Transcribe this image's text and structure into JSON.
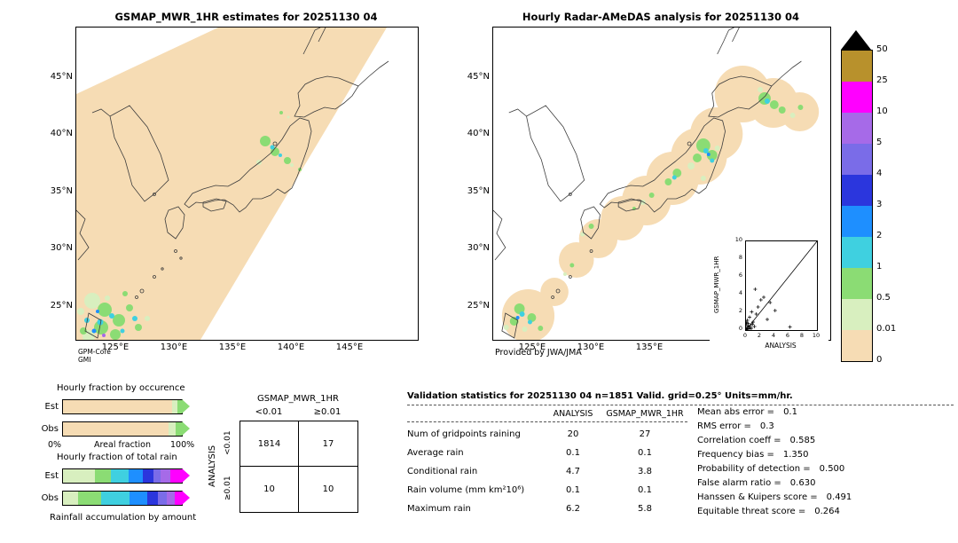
{
  "chart_data": [
    {
      "type": "heatmap",
      "title": "GSMAP_MWR_1HR estimates for 20251130 04",
      "units": "mm/hr",
      "scale_levels": [
        0,
        0.01,
        0.5,
        1,
        2,
        3,
        4,
        5,
        10,
        25,
        50
      ],
      "note": "satellite swath precipitation map over Japan, GPM-Core GMI"
    },
    {
      "type": "heatmap",
      "title": "Hourly Radar-AMeDAS analysis for 20251130 04",
      "units": "mm/hr",
      "scale_levels": [
        0,
        0.01,
        0.5,
        1,
        2,
        3,
        4,
        5,
        10,
        25,
        50
      ],
      "note": "radar analysis precipitation map over Japan, Provided by JWA/JMA"
    },
    {
      "type": "table",
      "title": "Contingency table",
      "row_axis": "ANALYSIS",
      "col_axis": "GSMAP_MWR_1HR",
      "columns": [
        "<0.01",
        "≥0.01"
      ],
      "rows": [
        {
          "label": "<0.01",
          "values": [
            1814,
            17
          ]
        },
        {
          "label": "≥0.01",
          "values": [
            10,
            10
          ]
        }
      ]
    },
    {
      "type": "table",
      "title": "Validation statistics for 20251130 04 n=1851 Valid. grid=0.25° Units=mm/hr.",
      "columns": [
        "ANALYSIS",
        "GSMAP_MWR_1HR"
      ],
      "rows": [
        [
          "Num of gridpoints raining",
          20,
          27
        ],
        [
          "Average rain",
          0.1,
          0.1
        ],
        [
          "Conditional rain",
          4.7,
          3.8
        ],
        [
          "Rain volume (mm km²10⁶)",
          0.1,
          0.1
        ],
        [
          "Maximum rain",
          6.2,
          5.8
        ]
      ],
      "metrics": {
        "Mean abs error": 0.1,
        "RMS error": 0.3,
        "Correlation coeff": 0.585,
        "Frequency bias": 1.35,
        "Probability of detection": 0.5,
        "False alarm ratio": 0.63,
        "Hanssen & Kuipers score": 0.491,
        "Equitable threat score": 0.264
      }
    },
    {
      "type": "scatter",
      "title": "inset validation scatter",
      "xlabel": "ANALYSIS",
      "ylabel": "GSMAP_MWR_1HR",
      "xlim": [
        0,
        10
      ],
      "ylim": [
        0,
        10
      ]
    }
  ],
  "palette": {
    "t": "#f6dcb4",
    "pg": "#d8efbf",
    "g": "#8bdc74",
    "c": "#3fd0e0",
    "b": "#1e8fff",
    "rb": "#2b36dd",
    "sb": "#7a6ce8",
    "v": "#a66ae8",
    "m": "#ff00ff",
    "gold": "#b8912c"
  },
  "colorbar": {
    "labels": [
      "50",
      "25",
      "10",
      "5",
      "4",
      "3",
      "2",
      "1",
      "0.5",
      "0.01",
      "0"
    ],
    "colors": [
      "#b8912c",
      "#ff00ff",
      "#a66ae8",
      "#7a6ce8",
      "#2b36dd",
      "#1e8fff",
      "#3fd0e0",
      "#8bdc74",
      "#d8efbf",
      "#f6dcb4"
    ]
  },
  "maps": {
    "left": {
      "title": "GSMAP_MWR_1HR estimates for 20251130 04",
      "lat_ticks": [
        "45°N",
        "40°N",
        "35°N",
        "30°N",
        "25°N"
      ],
      "lon_ticks": [
        "125°E",
        "130°E",
        "135°E",
        "140°E",
        "145°E"
      ],
      "source_line1": "GPM-Core",
      "source_line2": "GMI",
      "blobs": [
        [
          213,
          128,
          6,
          "g"
        ],
        [
          224,
          140,
          5,
          "g"
        ],
        [
          238,
          150,
          4,
          "g"
        ],
        [
          206,
          152,
          3,
          "pg"
        ],
        [
          221,
          135,
          2.5,
          "c"
        ],
        [
          230,
          144,
          2,
          "c"
        ],
        [
          243,
          155,
          2,
          "pg"
        ],
        [
          252,
          160,
          2,
          "g"
        ],
        [
          231,
          96,
          2,
          "g"
        ],
        [
          239,
          101,
          1.5,
          "pg"
        ],
        [
          18,
          308,
          9,
          "pg"
        ],
        [
          32,
          318,
          8,
          "g"
        ],
        [
          48,
          330,
          7,
          "g"
        ],
        [
          28,
          338,
          8,
          "g"
        ],
        [
          14,
          348,
          7,
          "pg"
        ],
        [
          44,
          346,
          6,
          "g"
        ],
        [
          60,
          316,
          4,
          "g"
        ],
        [
          70,
          338,
          4,
          "g"
        ],
        [
          80,
          328,
          3,
          "pg"
        ],
        [
          27,
          332,
          3.5,
          "c"
        ],
        [
          40,
          325,
          3,
          "c"
        ],
        [
          20,
          342,
          2.5,
          "b"
        ],
        [
          31,
          347,
          2,
          "v"
        ],
        [
          52,
          342,
          2.5,
          "c"
        ],
        [
          12,
          330,
          3,
          "c"
        ],
        [
          35,
          305,
          3,
          "pg"
        ],
        [
          55,
          300,
          3,
          "g"
        ],
        [
          8,
          342,
          4,
          "g"
        ],
        [
          5,
          320,
          4,
          "pg"
        ],
        [
          66,
          328,
          3,
          "c"
        ],
        [
          24,
          320,
          2,
          "b"
        ]
      ]
    },
    "right": {
      "title": "Hourly Radar-AMeDAS analysis for 20251130 04",
      "lat_ticks": [
        "45°N",
        "40°N",
        "35°N",
        "30°N",
        "25°N"
      ],
      "lon_ticks": [
        "125°E",
        "130°E",
        "135°E"
      ],
      "credit": "Provided by JWA/JMA",
      "coverage_blobs": [
        [
          285,
          75,
          32
        ],
        [
          320,
          85,
          28
        ],
        [
          350,
          95,
          22
        ],
        [
          255,
          120,
          30
        ],
        [
          235,
          145,
          32
        ],
        [
          205,
          170,
          30
        ],
        [
          175,
          195,
          28
        ],
        [
          148,
          215,
          25
        ],
        [
          120,
          238,
          22
        ],
        [
          95,
          262,
          20
        ],
        [
          40,
          325,
          30
        ],
        [
          70,
          298,
          16
        ]
      ],
      "blobs": [
        [
          240,
          133,
          8,
          "g"
        ],
        [
          250,
          144,
          6,
          "g"
        ],
        [
          233,
          147,
          5,
          "g"
        ],
        [
          243,
          139,
          3,
          "c"
        ],
        [
          250,
          150,
          2.5,
          "c"
        ],
        [
          246,
          143,
          2,
          "b"
        ],
        [
          256,
          136,
          3,
          "pg"
        ],
        [
          226,
          156,
          4,
          "pg"
        ],
        [
          210,
          164,
          5,
          "g"
        ],
        [
          200,
          174,
          4,
          "g"
        ],
        [
          207,
          169,
          2.5,
          "c"
        ],
        [
          181,
          189,
          3,
          "g"
        ],
        [
          171,
          197,
          3,
          "pg"
        ],
        [
          161,
          204,
          2,
          "g"
        ],
        [
          240,
          170,
          3,
          "pg"
        ],
        [
          310,
          80,
          7,
          "g"
        ],
        [
          321,
          87,
          5,
          "g"
        ],
        [
          313,
          83,
          3,
          "c"
        ],
        [
          330,
          93,
          4,
          "g"
        ],
        [
          342,
          99,
          3,
          "pg"
        ],
        [
          351,
          90,
          3,
          "g"
        ],
        [
          305,
          70,
          3,
          "pg"
        ],
        [
          112,
          224,
          3,
          "g"
        ],
        [
          102,
          233,
          2.5,
          "pg"
        ],
        [
          90,
          268,
          2.5,
          "g"
        ],
        [
          82,
          278,
          2,
          "pg"
        ],
        [
          30,
          317,
          6,
          "g"
        ],
        [
          44,
          327,
          5,
          "g"
        ],
        [
          24,
          331,
          5,
          "g"
        ],
        [
          33,
          323,
          3,
          "c"
        ],
        [
          42,
          332,
          2.5,
          "c"
        ],
        [
          28,
          327,
          2,
          "b"
        ],
        [
          54,
          339,
          3,
          "g"
        ],
        [
          15,
          338,
          3,
          "pg"
        ],
        [
          36,
          340,
          3,
          "pg"
        ]
      ]
    }
  },
  "inset": {
    "ylabel": "GSMAP_MWR_1HR",
    "xlabel": "ANALYSIS",
    "ticks": [
      "0",
      "2",
      "4",
      "6",
      "8",
      "10"
    ],
    "points": [
      [
        0.05,
        0.1
      ],
      [
        0.1,
        0.05
      ],
      [
        0.15,
        0.3
      ],
      [
        0.25,
        0.15
      ],
      [
        0.3,
        0.45
      ],
      [
        0.1,
        0.6
      ],
      [
        0.45,
        0.3
      ],
      [
        0.5,
        0.15
      ],
      [
        0.3,
        0.75
      ],
      [
        0.6,
        0.5
      ],
      [
        0.75,
        0.2
      ],
      [
        0.9,
        0.65
      ],
      [
        0.2,
        1.1
      ],
      [
        1.0,
        0.9
      ],
      [
        0.5,
        1.45
      ],
      [
        1.2,
        0.4
      ],
      [
        1.45,
        1.8
      ],
      [
        0.8,
        2.05
      ],
      [
        1.7,
        2.6
      ],
      [
        2.1,
        3.4
      ],
      [
        2.5,
        3.7
      ],
      [
        3.0,
        1.2
      ],
      [
        3.4,
        3.1
      ],
      [
        4.1,
        2.2
      ],
      [
        0.05,
        0.85
      ],
      [
        1.3,
        4.6
      ],
      [
        6.2,
        0.35
      ]
    ]
  },
  "fractions": {
    "occurrence_title": "Hourly fraction by occurence",
    "total_title": "Hourly fraction of total rain",
    "areal_left": "0%",
    "areal_label": "Areal fraction",
    "areal_right": "100%",
    "caption": "Rainfall accumulation by amount",
    "occ_rows": [
      {
        "label": "Est",
        "tip": "g",
        "segments": [
          {
            "c": "t",
            "pct": 92
          },
          {
            "c": "pg",
            "pct": 4
          },
          {
            "c": "g",
            "pct": 4
          }
        ]
      },
      {
        "label": "Obs",
        "tip": "g",
        "segments": [
          {
            "c": "t",
            "pct": 89
          },
          {
            "c": "pg",
            "pct": 6
          },
          {
            "c": "g",
            "pct": 5
          }
        ]
      }
    ],
    "total_rows": [
      {
        "label": "Est",
        "tip": "m",
        "segments": [
          {
            "c": "pg",
            "pct": 27
          },
          {
            "c": "g",
            "pct": 13
          },
          {
            "c": "c",
            "pct": 15
          },
          {
            "c": "b",
            "pct": 12
          },
          {
            "c": "rb",
            "pct": 9
          },
          {
            "c": "sb",
            "pct": 6
          },
          {
            "c": "v",
            "pct": 8
          },
          {
            "c": "m",
            "pct": 10
          }
        ]
      },
      {
        "label": "Obs",
        "tip": "m",
        "segments": [
          {
            "c": "pg",
            "pct": 13
          },
          {
            "c": "g",
            "pct": 19
          },
          {
            "c": "c",
            "pct": 24
          },
          {
            "c": "b",
            "pct": 15
          },
          {
            "c": "rb",
            "pct": 9
          },
          {
            "c": "sb",
            "pct": 7
          },
          {
            "c": "v",
            "pct": 7
          },
          {
            "c": "m",
            "pct": 6
          }
        ]
      }
    ]
  },
  "contingency": {
    "title": "GSMAP_MWR_1HR",
    "col_labels": [
      "<0.01",
      "≥0.01"
    ],
    "row_axis": "ANALYSIS",
    "row_labels": [
      "<0.01",
      "≥0.01"
    ],
    "values": [
      [
        "1814",
        "17"
      ],
      [
        "10",
        "10"
      ]
    ]
  },
  "stats": {
    "header": "Validation statistics for 20251130 04  n=1851 Valid. grid=0.25° Units=mm/hr.",
    "col_headers": [
      "ANALYSIS",
      "GSMAP_MWR_1HR"
    ],
    "rows": [
      {
        "label": "Num of gridpoints raining",
        "a": "20",
        "g": "27"
      },
      {
        "label": "Average rain",
        "a": "0.1",
        "g": "0.1"
      },
      {
        "label": "Conditional rain",
        "a": "4.7",
        "g": "3.8"
      },
      {
        "label": "Rain volume (mm km²10⁶)",
        "a": "0.1",
        "g": "0.1"
      },
      {
        "label": "Maximum rain",
        "a": "6.2",
        "g": "5.8"
      }
    ],
    "metrics": [
      {
        "label": "Mean abs error =",
        "value": "0.1"
      },
      {
        "label": "RMS error =",
        "value": "0.3"
      },
      {
        "label": "Correlation coeff =",
        "value": "0.585"
      },
      {
        "label": "Frequency bias =",
        "value": "1.350"
      },
      {
        "label": "Probability of detection =",
        "value": "0.500"
      },
      {
        "label": "False alarm ratio =",
        "value": "0.630"
      },
      {
        "label": "Hanssen & Kuipers score =",
        "value": "0.491"
      },
      {
        "label": "Equitable threat score =",
        "value": "0.264"
      }
    ]
  }
}
